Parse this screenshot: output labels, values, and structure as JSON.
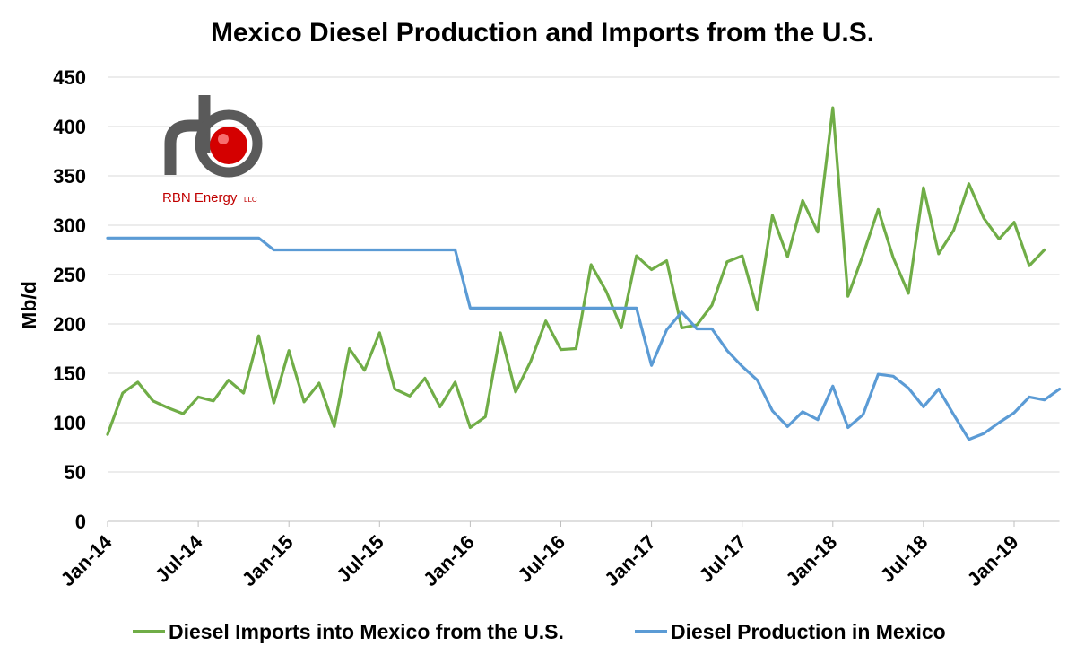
{
  "chart_data": {
    "type": "line",
    "title": "Mexico Diesel Production and Imports from the U.S.",
    "ylabel": "Mb/d",
    "xlabel": "",
    "ylim": [
      0,
      450
    ],
    "yticks": [
      0,
      50,
      100,
      150,
      200,
      250,
      300,
      350,
      400,
      450
    ],
    "x_start": "Jan-14",
    "x_tick_labels": [
      "Jan-14",
      "Jul-14",
      "Jan-15",
      "Jul-15",
      "Jan-16",
      "Jul-16",
      "Jan-17",
      "Jul-17",
      "Jan-18",
      "Jul-18",
      "Jan-19"
    ],
    "x": [
      "Jan-14",
      "Feb-14",
      "Mar-14",
      "Apr-14",
      "May-14",
      "Jun-14",
      "Jul-14",
      "Aug-14",
      "Sep-14",
      "Oct-14",
      "Nov-14",
      "Dec-14",
      "Jan-15",
      "Feb-15",
      "Mar-15",
      "Apr-15",
      "May-15",
      "Jun-15",
      "Jul-15",
      "Aug-15",
      "Sep-15",
      "Oct-15",
      "Nov-15",
      "Dec-15",
      "Jan-16",
      "Feb-16",
      "Mar-16",
      "Apr-16",
      "May-16",
      "Jun-16",
      "Jul-16",
      "Aug-16",
      "Sep-16",
      "Oct-16",
      "Nov-16",
      "Dec-16",
      "Jan-17",
      "Feb-17",
      "Mar-17",
      "Apr-17",
      "May-17",
      "Jun-17",
      "Jul-17",
      "Aug-17",
      "Sep-17",
      "Oct-17",
      "Nov-17",
      "Dec-17",
      "Jan-18",
      "Feb-18",
      "Mar-18",
      "Apr-18",
      "May-18",
      "Jun-18",
      "Jul-18",
      "Aug-18",
      "Sep-18",
      "Oct-18",
      "Nov-18",
      "Dec-18",
      "Jan-19",
      "Feb-19",
      "Mar-19",
      "Apr-19"
    ],
    "grid": true,
    "legend_position": "bottom",
    "series": [
      {
        "name": "Diesel Imports into Mexico from the U.S.",
        "color": "#70ad47",
        "values": [
          88,
          130,
          141,
          122,
          115,
          109,
          126,
          122,
          143,
          130,
          188,
          120,
          173,
          121,
          140,
          96,
          175,
          153,
          191,
          134,
          127,
          145,
          116,
          141,
          95,
          106,
          191,
          131,
          162,
          203,
          174,
          175,
          260,
          233,
          196,
          269,
          255,
          264,
          196,
          199,
          219,
          263,
          269,
          214,
          310,
          268,
          325,
          293,
          419,
          228,
          270,
          316,
          267,
          231,
          338,
          271,
          295,
          342,
          307,
          286,
          303,
          259,
          275,
          null
        ]
      },
      {
        "name": "Diesel Production in Mexico",
        "color": "#5b9bd5",
        "values": [
          287,
          287,
          287,
          287,
          287,
          287,
          287,
          287,
          287,
          287,
          287,
          275,
          275,
          275,
          275,
          275,
          275,
          275,
          275,
          275,
          275,
          275,
          275,
          275,
          216,
          216,
          216,
          216,
          216,
          216,
          216,
          216,
          216,
          216,
          216,
          216,
          158,
          194,
          212,
          195,
          195,
          173,
          157,
          143,
          112,
          96,
          111,
          103,
          137,
          95,
          108,
          149,
          147,
          135,
          116,
          134,
          108,
          83,
          89,
          100,
          110,
          126,
          123,
          134
        ]
      }
    ]
  },
  "logo": {
    "name": "RBN Energy",
    "suffix": "LLC",
    "colors": {
      "pipe": "#5a5a5a",
      "ball": "#d40000",
      "text": "#c00000"
    }
  },
  "colors": {
    "grid": "#d9d9d9",
    "axis": "#bfbfbf"
  }
}
